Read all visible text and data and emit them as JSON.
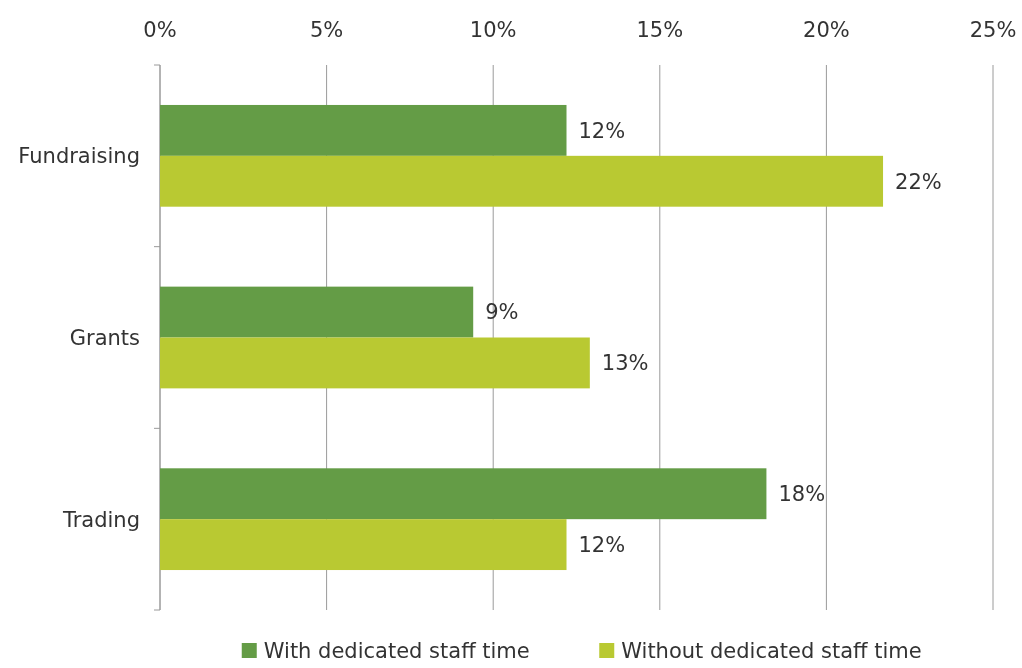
{
  "chart_data": {
    "type": "bar",
    "orientation": "horizontal",
    "categories": [
      "Fundraising",
      "Grants",
      "Trading"
    ],
    "series": [
      {
        "name": "With dedicated staff time",
        "color": "#649c46",
        "values": [
          12.2,
          9.4,
          18.2
        ],
        "value_labels": [
          "12%",
          "9%",
          "18%"
        ]
      },
      {
        "name": "Without dedicated staff time",
        "color": "#b9c932",
        "values": [
          21.7,
          12.9,
          12.2
        ],
        "value_labels": [
          "22%",
          "13%",
          "12%"
        ]
      }
    ],
    "xlim": [
      0,
      25
    ],
    "xticks": [
      {
        "value": 0,
        "label": "0%"
      },
      {
        "value": 5,
        "label": "5%"
      },
      {
        "value": 10,
        "label": "10%"
      },
      {
        "value": 15,
        "label": "15%"
      },
      {
        "value": 20,
        "label": "20%"
      },
      {
        "value": 25,
        "label": "25%"
      }
    ],
    "grid": "x",
    "legend": "bottom"
  }
}
